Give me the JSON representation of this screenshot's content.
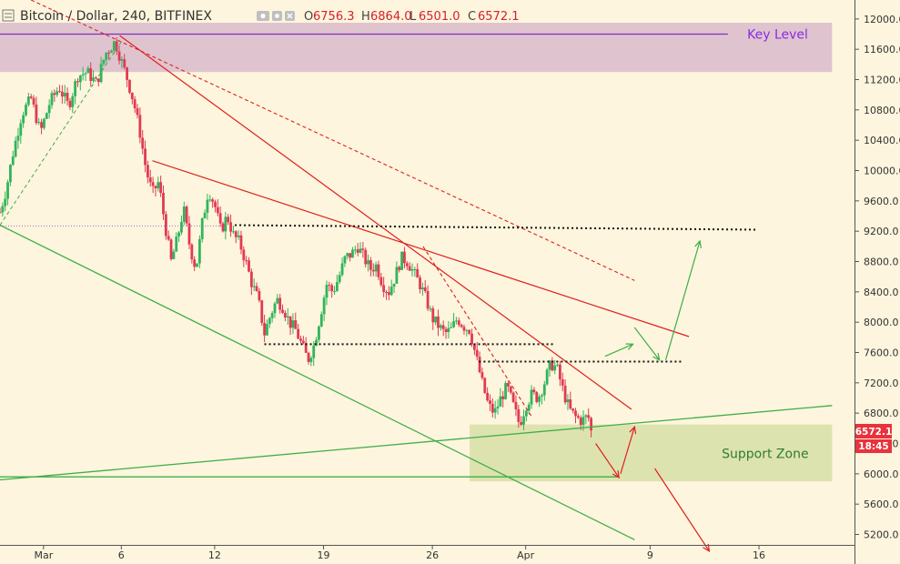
{
  "header": {
    "title": "Bitcoin / Dollar, 240, BITFINEX",
    "ohlc": [
      {
        "label": "O",
        "value": "6756.3"
      },
      {
        "label": "H",
        "value": "6864.0"
      },
      {
        "label": "L",
        "value": "6501.0"
      },
      {
        "label": "C",
        "value": "6572.1"
      }
    ]
  },
  "colors": {
    "background": "#fdf5dd",
    "up": "#31b45c",
    "down": "#e13a52",
    "support_zone": "#d7dfa7",
    "key_level_zone": "#dcbfcd",
    "key_level_line": "#7e2fbf",
    "trend_red": "#e02020",
    "trend_green": "#3fae49"
  },
  "icons": [
    "menu-icon",
    "eye-icon",
    "settings-icon",
    "close-icon"
  ],
  "chart_data": {
    "type": "candlestick",
    "title": "Bitcoin / Dollar, 240, BITFINEX",
    "y_ticks": [
      12000,
      11600,
      11200,
      10800,
      10400,
      10000,
      9600,
      9200,
      8800,
      8400,
      8000,
      7600,
      7200,
      6800,
      6400,
      6000,
      5600,
      5200
    ],
    "y_tick_labels": [
      "12000.0",
      "11600.0",
      "11200.0",
      "10800.0",
      "10400.0",
      "10000.0",
      "9600.0",
      "9200.0",
      "8800.0",
      "8400.0",
      "8000.0",
      "7600.0",
      "7200.0",
      "6800.0",
      "6400.0",
      "6000.0",
      "5600.0",
      "5200.0"
    ],
    "ylim": [
      5050,
      12250
    ],
    "x_ticks": [
      {
        "label": "Mar",
        "day": 0
      },
      {
        "label": "6",
        "day": 5
      },
      {
        "label": "12",
        "day": 11
      },
      {
        "label": "19",
        "day": 18
      },
      {
        "label": "26",
        "day": 25
      },
      {
        "label": "Apr",
        "day": 31
      },
      {
        "label": "9",
        "day": 39
      },
      {
        "label": "16",
        "day": 46
      }
    ],
    "xlim": [
      -2.8,
      52.2
    ],
    "last_price": "6572.1",
    "countdown": "18:45",
    "price_path": [
      [
        -2.8,
        9450
      ],
      [
        -2.4,
        9750
      ],
      [
        -2.0,
        10200
      ],
      [
        -1.4,
        10750
      ],
      [
        -0.8,
        10950
      ],
      [
        -0.2,
        10500
      ],
      [
        0.4,
        10900
      ],
      [
        1.0,
        11100
      ],
      [
        1.6,
        10850
      ],
      [
        2.2,
        11250
      ],
      [
        2.8,
        11300
      ],
      [
        3.4,
        11150
      ],
      [
        4.0,
        11550
      ],
      [
        4.6,
        11700
      ],
      [
        5.0,
        11450
      ],
      [
        5.4,
        11200
      ],
      [
        5.8,
        10900
      ],
      [
        6.2,
        10500
      ],
      [
        6.6,
        10000
      ],
      [
        7.0,
        9700
      ],
      [
        7.4,
        9850
      ],
      [
        7.8,
        9300
      ],
      [
        8.2,
        8800
      ],
      [
        8.6,
        9100
      ],
      [
        9.0,
        9500
      ],
      [
        9.4,
        9000
      ],
      [
        9.8,
        8700
      ],
      [
        10.2,
        9300
      ],
      [
        10.6,
        9750
      ],
      [
        11.0,
        9550
      ],
      [
        11.4,
        9200
      ],
      [
        11.8,
        9400
      ],
      [
        12.2,
        9150
      ],
      [
        12.6,
        9050
      ],
      [
        13.0,
        8800
      ],
      [
        13.4,
        8500
      ],
      [
        13.8,
        8300
      ],
      [
        14.2,
        7850
      ],
      [
        14.6,
        8100
      ],
      [
        15.0,
        8300
      ],
      [
        15.4,
        8200
      ],
      [
        15.8,
        8000
      ],
      [
        16.2,
        7900
      ],
      [
        16.6,
        7700
      ],
      [
        17.0,
        7500
      ],
      [
        17.4,
        7700
      ],
      [
        17.8,
        8100
      ],
      [
        18.2,
        8500
      ],
      [
        18.6,
        8400
      ],
      [
        19.0,
        8600
      ],
      [
        19.4,
        8850
      ],
      [
        19.8,
        8900
      ],
      [
        20.2,
        9000
      ],
      [
        20.6,
        8850
      ],
      [
        21.0,
        8700
      ],
      [
        21.4,
        8750
      ],
      [
        21.8,
        8500
      ],
      [
        22.2,
        8400
      ],
      [
        22.6,
        8600
      ],
      [
        23.0,
        8850
      ],
      [
        23.4,
        8800
      ],
      [
        23.8,
        8650
      ],
      [
        24.2,
        8500
      ],
      [
        24.6,
        8300
      ],
      [
        25.0,
        8050
      ],
      [
        25.4,
        7950
      ],
      [
        25.8,
        7850
      ],
      [
        26.2,
        7900
      ],
      [
        26.6,
        8050
      ],
      [
        27.0,
        7950
      ],
      [
        27.4,
        7900
      ],
      [
        27.8,
        7550
      ],
      [
        28.2,
        7200
      ],
      [
        28.6,
        6900
      ],
      [
        29.0,
        6800
      ],
      [
        29.4,
        7000
      ],
      [
        29.8,
        7150
      ],
      [
        30.2,
        6900
      ],
      [
        30.6,
        6650
      ],
      [
        31.0,
        6900
      ],
      [
        31.4,
        7050
      ],
      [
        31.8,
        7000
      ],
      [
        32.2,
        7200
      ],
      [
        32.6,
        7450
      ],
      [
        33.0,
        7400
      ],
      [
        33.4,
        7100
      ],
      [
        33.8,
        6850
      ],
      [
        34.2,
        6750
      ],
      [
        34.6,
        6700
      ],
      [
        35.0,
        6760
      ],
      [
        35.3,
        6572
      ]
    ],
    "zones": [
      {
        "name": "Key Level",
        "from_day": -2.8,
        "to_day": 50.7,
        "low": 11300,
        "high": 11950
      },
      {
        "name": "Support Zone",
        "from_day": 27.4,
        "to_day": 50.7,
        "low": 5900,
        "high": 6650
      }
    ],
    "trendlines": [
      {
        "id": "key-level-line",
        "color": "#7e2fbf",
        "dash": "",
        "width": 1.3,
        "points": [
          [
            -2.8,
            11800
          ],
          [
            44.0,
            11800
          ]
        ]
      },
      {
        "id": "descending-red-long",
        "color": "#e02020",
        "dash": "",
        "width": 1.2,
        "points": [
          [
            4.9,
            11780
          ],
          [
            37.8,
            6850
          ]
        ]
      },
      {
        "id": "descending-red-dashed-upper",
        "color": "#e02020",
        "dash": "4,3",
        "width": 1.1,
        "points": [
          [
            -0.8,
            12250
          ],
          [
            38.0,
            8550
          ]
        ]
      },
      {
        "id": "descending-red-dashed-lower",
        "color": "#e02020",
        "dash": "4,3",
        "width": 1.1,
        "points": [
          [
            24.4,
            9000
          ],
          [
            31.4,
            6750
          ]
        ]
      },
      {
        "id": "descending-red-lower-channel",
        "color": "#e02020",
        "dash": "",
        "width": 1.2,
        "points": [
          [
            7.0,
            10130
          ],
          [
            41.5,
            7810
          ]
        ]
      },
      {
        "id": "descending-green",
        "color": "#3fae49",
        "dash": "",
        "width": 1.3,
        "points": [
          [
            -2.8,
            9280
          ],
          [
            38.0,
            5130
          ]
        ]
      },
      {
        "id": "ascending-green",
        "color": "#3fae49",
        "dash": "",
        "width": 1.3,
        "points": [
          [
            -2.8,
            5920
          ],
          [
            50.7,
            6900
          ]
        ]
      },
      {
        "id": "support-line",
        "color": "#3fae49",
        "dash": "",
        "width": 1.3,
        "points": [
          [
            -2.8,
            5960
          ],
          [
            36.9,
            5960
          ]
        ]
      },
      {
        "id": "ascending-green-dashed",
        "color": "#3fae49",
        "dash": "4,3",
        "width": 1.0,
        "points": [
          [
            -2.8,
            9280
          ],
          [
            5.0,
            11700
          ]
        ]
      },
      {
        "id": "dotted-level-9200",
        "color": "#111111",
        "dash": "2,3",
        "width": 2.0,
        "points": [
          [
            12.3,
            9280
          ],
          [
            45.9,
            9220
          ]
        ]
      },
      {
        "id": "dotted-level-7700",
        "color": "#111111",
        "dash": "2,3",
        "width": 2.0,
        "points": [
          [
            14.2,
            7710
          ],
          [
            32.8,
            7710
          ]
        ]
      },
      {
        "id": "dotted-level-7500",
        "color": "#111111",
        "dash": "2,3",
        "width": 2.0,
        "points": [
          [
            28.0,
            7480
          ],
          [
            41.0,
            7480
          ]
        ]
      },
      {
        "id": "purple-dotted-level",
        "color": "#9a70c0",
        "dash": "1,2",
        "width": 1.0,
        "points": [
          [
            -2.8,
            9270
          ],
          [
            11.6,
            9270
          ]
        ]
      }
    ],
    "arrows": [
      {
        "id": "red-arrow-down",
        "color": "#e02020",
        "points": [
          [
            35.5,
            6400
          ],
          [
            37.0,
            5950
          ]
        ]
      },
      {
        "id": "red-arrow-up",
        "color": "#e02020",
        "points": [
          [
            37.1,
            6000
          ],
          [
            38.0,
            6620
          ]
        ]
      },
      {
        "id": "red-arrow-long-down",
        "color": "#e02020",
        "points": [
          [
            39.3,
            6070
          ],
          [
            42.8,
            4980
          ]
        ]
      },
      {
        "id": "green-arrow-up-small",
        "color": "#3fae49",
        "points": [
          [
            36.1,
            7550
          ],
          [
            37.9,
            7710
          ]
        ]
      },
      {
        "id": "green-arrow-down-small",
        "color": "#3fae49",
        "points": [
          [
            38.0,
            7930
          ],
          [
            39.6,
            7500
          ]
        ]
      },
      {
        "id": "green-arrow-up-long",
        "color": "#3fae49",
        "points": [
          [
            40.0,
            7500
          ],
          [
            42.2,
            9070
          ]
        ]
      }
    ],
    "annotations": [
      {
        "text": "Key Level",
        "day": 47.2,
        "price": 11800,
        "color": "#8a2be2"
      },
      {
        "text": "Support Zone",
        "day": 46.4,
        "price": 6270,
        "color": "#2e7d32"
      }
    ]
  }
}
